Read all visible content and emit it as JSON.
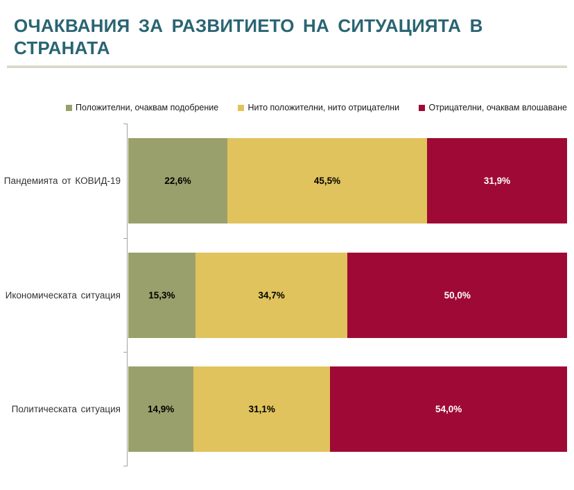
{
  "header": {
    "title": "ОЧАКВАНИЯ ЗА РАЗВИТИЕТО НА СИТУАЦИЯТА В\nСТРАНАТА",
    "title_color": "#2a6473",
    "divider_color": "#d9d8c7"
  },
  "chart_data": {
    "type": "bar",
    "subtype": "horizontal_stacked",
    "title": "ОЧАКВАНИЯ ЗА РАЗВИТИЕТО НА СИТУАЦИЯТА В СТРАНАТА",
    "xlabel": "",
    "ylabel": "",
    "xlim": [
      0,
      100
    ],
    "grid": false,
    "legend_position": "top",
    "categories": [
      "Пандемията от КОВИД-19",
      "Икономическата ситуация",
      "Политическата ситуация"
    ],
    "series": [
      {
        "name": "Положителни, очаквам подобрение",
        "color": "#9aa06b",
        "label_color": "#000000",
        "values": [
          22.6,
          15.3,
          14.9
        ],
        "labels": [
          "22,6%",
          "15,3%",
          "14,9%"
        ]
      },
      {
        "name": "Нито положителни, нито отрицателни",
        "color": "#e0c35c",
        "label_color": "#000000",
        "values": [
          45.5,
          34.7,
          31.1
        ],
        "labels": [
          "45,5%",
          "34,7%",
          "31,1%"
        ]
      },
      {
        "name": "Отрицателни, очаквам влошаване",
        "color": "#9e0a35",
        "label_color": "#ffffff",
        "values": [
          31.9,
          50.0,
          54.0
        ],
        "labels": [
          "31,9%",
          "50,0%",
          "54,0%"
        ]
      }
    ]
  }
}
